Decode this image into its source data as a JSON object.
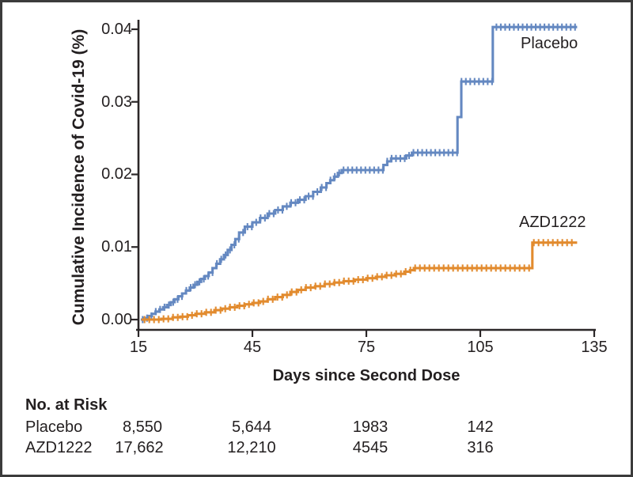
{
  "figure": {
    "y_axis_title": "Cumulative Incidence of Covid-19 (%)",
    "x_axis_title": "Days since Second Dose",
    "curve_label_placebo": "Placebo",
    "curve_label_azd1222": "AZD1222",
    "risk_table": {
      "header": "No. at Risk",
      "rows": [
        {
          "label": "Placebo",
          "values": [
            "8,550",
            "5,644",
            "1983",
            "142"
          ]
        },
        {
          "label": "AZD1222",
          "values": [
            "17,662",
            "12,210",
            "4545",
            "316"
          ]
        }
      ]
    },
    "colors": {
      "placebo_blue": "#6488c1",
      "azd1222_orange": "#e28b2e",
      "axis": "#2b2728",
      "text": "#231f20",
      "frame_border": "#3b3b3b"
    }
  },
  "chart_data": {
    "type": "line",
    "subtype": "kaplan-meier-step-cumulative-incidence",
    "title": "",
    "xlabel": "Days since Second Dose",
    "ylabel": "Cumulative Incidence of Covid-19 (%)",
    "xlim": [
      15,
      135
    ],
    "ylim": [
      0.0,
      0.04
    ],
    "x_ticks": [
      15,
      45,
      75,
      105,
      135
    ],
    "x_tick_labels": [
      "15",
      "45",
      "75",
      "105",
      "135"
    ],
    "y_ticks": [
      0.0,
      0.01,
      0.02,
      0.03,
      0.04
    ],
    "y_tick_labels": [
      "0.00",
      "0.01",
      "0.02",
      "0.03",
      "0.04"
    ],
    "grid": false,
    "legend_position": "inline-labels-at-curve-ends",
    "series": [
      {
        "name": "Placebo",
        "color": "#6488c1",
        "points": [
          [
            15.6,
            0.0
          ],
          [
            16.5,
            0.0002
          ],
          [
            17.5,
            0.0005
          ],
          [
            18.5,
            0.0008
          ],
          [
            19.5,
            0.0011
          ],
          [
            20.5,
            0.0014
          ],
          [
            21.5,
            0.0017
          ],
          [
            22.5,
            0.002
          ],
          [
            23.5,
            0.0024
          ],
          [
            24.5,
            0.0028
          ],
          [
            25.5,
            0.0032
          ],
          [
            26.5,
            0.0036
          ],
          [
            27.5,
            0.004
          ],
          [
            28.5,
            0.0044
          ],
          [
            29.5,
            0.0048
          ],
          [
            30.5,
            0.0052
          ],
          [
            31.5,
            0.0056
          ],
          [
            32.5,
            0.006
          ],
          [
            33.5,
            0.0065
          ],
          [
            34.5,
            0.0071
          ],
          [
            35.5,
            0.0077
          ],
          [
            36.5,
            0.0083
          ],
          [
            37.5,
            0.0089
          ],
          [
            38.5,
            0.0096
          ],
          [
            39.5,
            0.0103
          ],
          [
            40.5,
            0.0111
          ],
          [
            41.5,
            0.012
          ],
          [
            43,
            0.0128
          ],
          [
            45,
            0.0134
          ],
          [
            47,
            0.014
          ],
          [
            49,
            0.0146
          ],
          [
            51,
            0.0151
          ],
          [
            53,
            0.0156
          ],
          [
            55,
            0.0161
          ],
          [
            57,
            0.0165
          ],
          [
            59,
            0.017
          ],
          [
            61,
            0.0176
          ],
          [
            63,
            0.0182
          ],
          [
            64.5,
            0.0188
          ],
          [
            65.5,
            0.0192
          ],
          [
            66.5,
            0.0197
          ],
          [
            67.5,
            0.0202
          ],
          [
            68.5,
            0.0206
          ],
          [
            79.5,
            0.0213
          ],
          [
            80.5,
            0.0218
          ],
          [
            81.5,
            0.0222
          ],
          [
            85.5,
            0.0226
          ],
          [
            87,
            0.023
          ],
          [
            99,
            0.0279
          ],
          [
            100,
            0.0328
          ],
          [
            108.3,
            0.0403
          ],
          [
            130.5,
            0.0403
          ]
        ],
        "censor_ticks": {
          "start": 16.1,
          "end": 130.3,
          "spacing": 1.15
        }
      },
      {
        "name": "AZD1222",
        "color": "#e28b2e",
        "points": [
          [
            15.8,
            0.0
          ],
          [
            21,
            0.0001
          ],
          [
            24,
            0.0003
          ],
          [
            26,
            0.0004
          ],
          [
            28,
            0.0006
          ],
          [
            30,
            0.0008
          ],
          [
            32.5,
            0.001
          ],
          [
            35,
            0.0013
          ],
          [
            37,
            0.0015
          ],
          [
            39,
            0.0017
          ],
          [
            41,
            0.0019
          ],
          [
            43,
            0.0021
          ],
          [
            45,
            0.0023
          ],
          [
            47,
            0.0025
          ],
          [
            49,
            0.0028
          ],
          [
            51,
            0.0031
          ],
          [
            53,
            0.0034
          ],
          [
            55,
            0.0038
          ],
          [
            57,
            0.0041
          ],
          [
            59,
            0.0044
          ],
          [
            61.5,
            0.0046
          ],
          [
            64,
            0.0049
          ],
          [
            66.5,
            0.0051
          ],
          [
            69,
            0.0053
          ],
          [
            72,
            0.0055
          ],
          [
            75,
            0.0057
          ],
          [
            77.5,
            0.0059
          ],
          [
            80,
            0.0061
          ],
          [
            82.5,
            0.0063
          ],
          [
            85,
            0.0066
          ],
          [
            86.5,
            0.0068
          ],
          [
            87.5,
            0.0071
          ],
          [
            118.7,
            0.0106
          ],
          [
            130.5,
            0.0106
          ]
        ],
        "censor_ticks": {
          "start": 16.6,
          "end": 130.2,
          "spacing": 1.25
        }
      }
    ],
    "at_risk": {
      "days": [
        15,
        45,
        75,
        105
      ],
      "Placebo": [
        8550,
        5644,
        1983,
        142
      ],
      "AZD1222": [
        17662,
        12210,
        4545,
        316
      ]
    }
  }
}
